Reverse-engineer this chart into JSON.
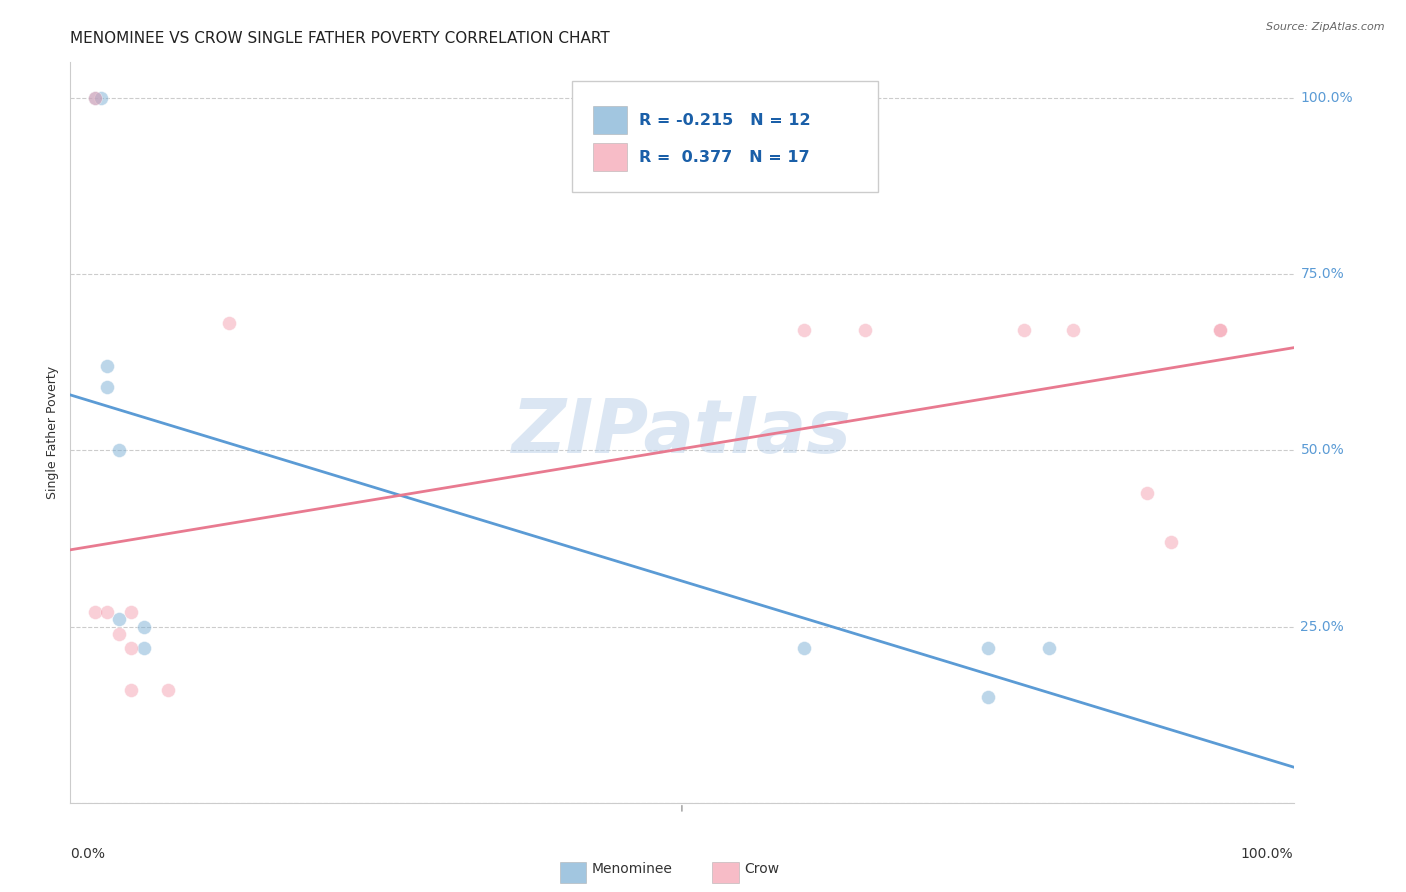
{
  "title": "MENOMINEE VS CROW SINGLE FATHER POVERTY CORRELATION CHART",
  "source": "Source: ZipAtlas.com",
  "ylabel": "Single Father Poverty",
  "watermark": "ZIPatlas",
  "menominee_color": "#7bafd4",
  "crow_color": "#f4a0b0",
  "menominee_line_color": "#5b9bd5",
  "crow_line_color": "#e87a90",
  "legend_R_menominee": "R = -0.215",
  "legend_N_menominee": "N = 12",
  "legend_R_crow": "R =  0.377",
  "legend_N_crow": "N = 17",
  "menominee_x": [
    0.02,
    0.025,
    0.03,
    0.03,
    0.04,
    0.04,
    0.06,
    0.06,
    0.6,
    0.75,
    0.75,
    0.8
  ],
  "menominee_y": [
    1.0,
    1.0,
    0.62,
    0.59,
    0.5,
    0.26,
    0.25,
    0.22,
    0.22,
    0.22,
    0.15,
    0.22
  ],
  "crow_x": [
    0.02,
    0.02,
    0.03,
    0.04,
    0.05,
    0.05,
    0.05,
    0.08,
    0.13,
    0.6,
    0.65,
    0.78,
    0.82,
    0.88,
    0.9,
    0.94,
    0.94
  ],
  "crow_y": [
    1.0,
    0.27,
    0.27,
    0.24,
    0.27,
    0.22,
    0.16,
    0.16,
    0.68,
    0.67,
    0.67,
    0.67,
    0.67,
    0.44,
    0.37,
    0.67,
    0.67
  ],
  "xlim": [
    0.0,
    1.0
  ],
  "ylim": [
    0.0,
    1.05
  ],
  "ytick_vals": [
    0.0,
    0.25,
    0.5,
    0.75,
    1.0
  ],
  "ytick_labels": [
    "",
    "25.0%",
    "50.0%",
    "75.0%",
    "100.0%"
  ],
  "xtick_vals": [
    0.0,
    0.25,
    0.5,
    0.75,
    1.0
  ],
  "grid_color": "#cccccc",
  "background_color": "#ffffff",
  "title_fontsize": 11,
  "label_fontsize": 9,
  "tick_color": "#5b9bd5",
  "marker_size": 100,
  "marker_alpha": 0.5
}
